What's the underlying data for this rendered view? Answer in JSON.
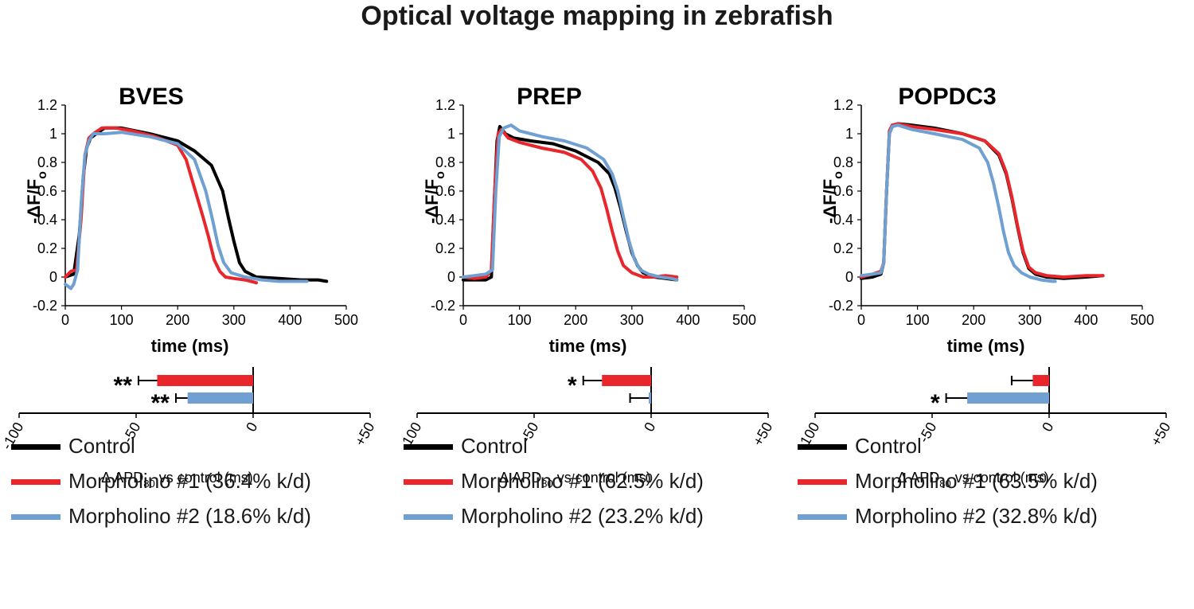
{
  "figure_title": "Optical voltage mapping in zebrafish",
  "colors": {
    "control": "#000000",
    "mo1": "#e8262b",
    "mo2": "#6fa0d1"
  },
  "chart_data": [
    {
      "type": "line",
      "title": "BVES",
      "xlabel": "time (ms)",
      "ylabel": "-ΔF/F",
      "ylabel_sub": "o",
      "xlim": [
        0,
        500
      ],
      "ylim": [
        -0.2,
        1.2
      ],
      "xticks": [
        "0",
        "100",
        "200",
        "300",
        "400",
        "500"
      ],
      "yticks": [
        "-0.2",
        "0",
        "0.2",
        "0.4",
        "0.6",
        "0.8",
        "1",
        "1.2"
      ],
      "series": [
        {
          "name": "Control",
          "color": "#000000",
          "x": [
            0,
            15,
            25,
            32,
            38,
            45,
            55,
            70,
            100,
            150,
            200,
            230,
            260,
            280,
            290,
            300,
            310,
            320,
            340,
            380,
            420,
            450,
            465
          ],
          "y": [
            0,
            0.02,
            0.3,
            0.7,
            0.9,
            0.97,
            1.0,
            1.04,
            1.04,
            1.0,
            0.95,
            0.88,
            0.78,
            0.6,
            0.42,
            0.25,
            0.1,
            0.04,
            0.0,
            -0.01,
            -0.02,
            -0.02,
            -0.03
          ]
        },
        {
          "name": "Morpholino #1 (36.4% k/d)",
          "color": "#e8262b",
          "x": [
            0,
            10,
            20,
            28,
            35,
            42,
            50,
            65,
            90,
            120,
            160,
            200,
            215,
            230,
            245,
            255,
            265,
            275,
            285,
            300,
            320,
            340
          ],
          "y": [
            0,
            0.04,
            0.05,
            0.4,
            0.85,
            0.97,
            1.0,
            1.04,
            1.04,
            1.02,
            0.98,
            0.92,
            0.82,
            0.62,
            0.42,
            0.28,
            0.12,
            0.04,
            0.0,
            -0.01,
            -0.02,
            -0.04
          ]
        },
        {
          "name": "Morpholino #2 (18.6% k/d)",
          "color": "#6fa0d1",
          "x": [
            0,
            10,
            15,
            22,
            28,
            35,
            42,
            50,
            70,
            100,
            150,
            200,
            230,
            250,
            262,
            272,
            282,
            295,
            320,
            350,
            380,
            410,
            430
          ],
          "y": [
            -0.05,
            -0.08,
            -0.05,
            0.05,
            0.5,
            0.85,
            0.95,
            1.0,
            1.0,
            1.01,
            0.98,
            0.93,
            0.82,
            0.6,
            0.4,
            0.22,
            0.1,
            0.03,
            0.0,
            -0.02,
            -0.03,
            -0.03,
            -0.03
          ]
        }
      ],
      "apd_chart": {
        "xlabel_pre": "Δ APD",
        "xlabel_sub": "80",
        "xlabel_post": " vs control (ms)",
        "xlim": [
          -100,
          50
        ],
        "xticks": [
          "-100",
          "-50",
          "0",
          "+50"
        ],
        "bars": [
          {
            "name": "Morpholino #1 (36.4% k/d)",
            "color": "#e8262b",
            "value": -41,
            "error": 8,
            "significance": "**"
          },
          {
            "name": "Morpholino #2 (18.6% k/d)",
            "color": "#6fa0d1",
            "value": -28,
            "error": 5,
            "significance": "**"
          }
        ]
      },
      "legend": [
        {
          "label": "Control",
          "color": "#000000"
        },
        {
          "label": "Morpholino #1 (36.4% k/d)",
          "color": "#e8262b"
        },
        {
          "label": "Morpholino #2 (18.6% k/d)",
          "color": "#6fa0d1"
        }
      ]
    },
    {
      "type": "line",
      "title": "PREP",
      "xlabel": "time (ms)",
      "ylabel": "-ΔF/F",
      "ylabel_sub": "o",
      "xlim": [
        0,
        500
      ],
      "ylim": [
        -0.2,
        1.2
      ],
      "xticks": [
        "0",
        "100",
        "200",
        "300",
        "400",
        "500"
      ],
      "yticks": [
        "-0.2",
        "0",
        "0.2",
        "0.4",
        "0.6",
        "0.8",
        "1",
        "1.2"
      ],
      "series": [
        {
          "name": "Control",
          "color": "#000000",
          "x": [
            0,
            20,
            40,
            50,
            55,
            60,
            65,
            75,
            90,
            120,
            160,
            200,
            240,
            260,
            270,
            280,
            290,
            300,
            310,
            320,
            340,
            360,
            380
          ],
          "y": [
            -0.02,
            -0.02,
            -0.02,
            0.0,
            0.5,
            0.95,
            1.05,
            1.0,
            0.97,
            0.95,
            0.93,
            0.88,
            0.8,
            0.72,
            0.62,
            0.48,
            0.32,
            0.17,
            0.08,
            0.03,
            0.0,
            -0.01,
            -0.02
          ]
        },
        {
          "name": "Morpholino #1 (62.5% k/d)",
          "color": "#e8262b",
          "x": [
            0,
            20,
            40,
            50,
            56,
            62,
            68,
            80,
            100,
            140,
            180,
            210,
            230,
            245,
            255,
            265,
            275,
            285,
            300,
            320,
            340,
            360,
            380
          ],
          "y": [
            0,
            -0.01,
            0.0,
            0.05,
            0.6,
            1.0,
            1.03,
            0.97,
            0.94,
            0.9,
            0.87,
            0.82,
            0.74,
            0.62,
            0.48,
            0.32,
            0.18,
            0.08,
            0.03,
            0.0,
            0.0,
            0.01,
            0.0
          ]
        },
        {
          "name": "Morpholino #2 (23.2% k/d)",
          "color": "#6fa0d1",
          "x": [
            0,
            20,
            40,
            52,
            58,
            64,
            72,
            85,
            100,
            140,
            180,
            220,
            250,
            265,
            275,
            285,
            295,
            305,
            315,
            330,
            350,
            370,
            380
          ],
          "y": [
            0,
            0.01,
            0.02,
            0.05,
            0.6,
            0.98,
            1.04,
            1.06,
            1.02,
            0.98,
            0.95,
            0.9,
            0.82,
            0.72,
            0.6,
            0.42,
            0.25,
            0.12,
            0.05,
            0.02,
            0.0,
            -0.01,
            -0.02
          ]
        }
      ],
      "apd_chart": {
        "xlabel_pre": "Δ APD",
        "xlabel_sub": "80",
        "xlabel_post": " vs control (ms)",
        "xlim": [
          -100,
          50
        ],
        "xticks": [
          "-100",
          "-50",
          "0",
          "+50"
        ],
        "bars": [
          {
            "name": "Morpholino #1 (62.5% k/d)",
            "color": "#e8262b",
            "value": -21,
            "error": 8,
            "significance": "*"
          },
          {
            "name": "Morpholino #2 (23.2% k/d)",
            "color": "#6fa0d1",
            "value": -1,
            "error": 8,
            "significance": ""
          }
        ]
      },
      "legend": [
        {
          "label": "Control",
          "color": "#000000"
        },
        {
          "label": "Morpholino #1 (62.5% k/d)",
          "color": "#e8262b"
        },
        {
          "label": "Morpholino #2 (23.2% k/d)",
          "color": "#6fa0d1"
        }
      ]
    },
    {
      "type": "line",
      "title": "POPDC3",
      "xlabel": "time (ms)",
      "ylabel": "-ΔF/F",
      "ylabel_sub": "o",
      "xlim": [
        0,
        500
      ],
      "ylim": [
        -0.2,
        1.2
      ],
      "xticks": [
        "0",
        "100",
        "200",
        "300",
        "400",
        "500"
      ],
      "yticks": [
        "-0.2",
        "0",
        "0.2",
        "0.4",
        "0.6",
        "0.8",
        "1",
        "1.2"
      ],
      "series": [
        {
          "name": "Control",
          "color": "#000000",
          "x": [
            0,
            20,
            35,
            40,
            45,
            50,
            55,
            65,
            90,
            130,
            180,
            220,
            245,
            258,
            268,
            278,
            288,
            298,
            310,
            330,
            360,
            400,
            430
          ],
          "y": [
            -0.01,
            0.0,
            0.02,
            0.1,
            0.6,
            1.0,
            1.05,
            1.07,
            1.06,
            1.04,
            1.0,
            0.95,
            0.85,
            0.72,
            0.55,
            0.35,
            0.17,
            0.06,
            0.02,
            0.0,
            -0.01,
            0.0,
            0.01
          ]
        },
        {
          "name": "Morpholino #1 (63.5% k/d)",
          "color": "#e8262b",
          "x": [
            0,
            20,
            35,
            40,
            45,
            50,
            55,
            65,
            90,
            130,
            180,
            220,
            245,
            258,
            268,
            278,
            288,
            298,
            310,
            330,
            360,
            400,
            430
          ],
          "y": [
            0.0,
            0.02,
            0.04,
            0.1,
            0.6,
            1.02,
            1.06,
            1.07,
            1.05,
            1.03,
            1.0,
            0.95,
            0.86,
            0.73,
            0.56,
            0.36,
            0.18,
            0.07,
            0.03,
            0.01,
            0.0,
            0.01,
            0.01
          ]
        },
        {
          "name": "Morpholino #2 (32.8% k/d)",
          "color": "#6fa0d1",
          "x": [
            0,
            20,
            35,
            40,
            45,
            50,
            55,
            65,
            90,
            130,
            180,
            210,
            225,
            235,
            245,
            253,
            262,
            272,
            285,
            300,
            320,
            340,
            345
          ],
          "y": [
            0.01,
            0.02,
            0.03,
            0.1,
            0.6,
            1.0,
            1.05,
            1.06,
            1.03,
            1.0,
            0.96,
            0.9,
            0.8,
            0.66,
            0.48,
            0.32,
            0.17,
            0.08,
            0.03,
            0.0,
            -0.02,
            -0.03,
            -0.03
          ]
        }
      ],
      "apd_chart": {
        "xlabel_pre": "Δ APD",
        "xlabel_sub": "80",
        "xlabel_post": " vs control (ms)",
        "xlim": [
          -100,
          50
        ],
        "xticks": [
          "-100",
          "-50",
          "0",
          "+50"
        ],
        "bars": [
          {
            "name": "Morpholino #1 (63.5% k/d)",
            "color": "#e8262b",
            "value": -7,
            "error": 9,
            "significance": ""
          },
          {
            "name": "Morpholino #2 (32.8% k/d)",
            "color": "#6fa0d1",
            "value": -35,
            "error": 9,
            "significance": "*"
          }
        ]
      },
      "legend": [
        {
          "label": "Control",
          "color": "#000000"
        },
        {
          "label": "Morpholino #1 (63.5% k/d)",
          "color": "#e8262b"
        },
        {
          "label": "Morpholino #2 (32.8% k/d)",
          "color": "#6fa0d1"
        }
      ]
    }
  ]
}
